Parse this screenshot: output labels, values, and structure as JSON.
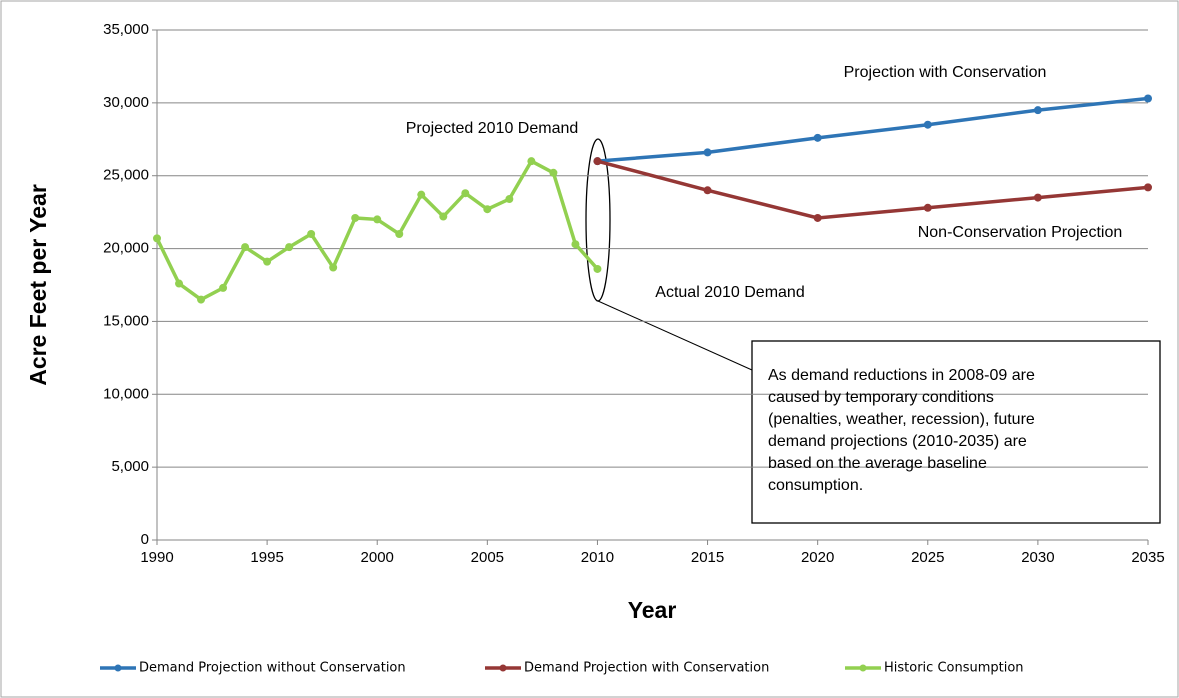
{
  "chart_data": {
    "type": "line",
    "xlabel": "Year",
    "ylabel": "Acre Feet per Year",
    "xlim": [
      1990,
      2035
    ],
    "xticks": [
      1990,
      1995,
      2000,
      2005,
      2010,
      2015,
      2020,
      2025,
      2030,
      2035
    ],
    "ylim": [
      0,
      35000
    ],
    "yticks": [
      0,
      {
        "value": 5000,
        "label": "5,000"
      },
      {
        "value": 10000,
        "label": "10,000"
      },
      {
        "value": 15000,
        "label": "15,000"
      },
      {
        "value": 20000,
        "label": "20,000"
      },
      {
        "value": 25000,
        "label": "25,000"
      },
      {
        "value": 30000,
        "label": "30,000"
      },
      {
        "value": 35000,
        "label": "35,000"
      }
    ],
    "grid": true,
    "legend": "bottom",
    "series": [
      {
        "name": "Demand Projection without Conservation",
        "color": "#2e75b6",
        "x": [
          2010,
          2015,
          2020,
          2025,
          2030,
          2035
        ],
        "values": [
          26000,
          26600,
          27600,
          28500,
          29500,
          30300
        ]
      },
      {
        "name": "Demand Projection with Conservation",
        "color": "#953735",
        "x": [
          2010,
          2015,
          2020,
          2025,
          2030,
          2035
        ],
        "values": [
          26000,
          24000,
          22100,
          22800,
          23500,
          24200
        ]
      },
      {
        "name": "Historic Consumption",
        "color": "#92d050",
        "x": [
          1990,
          1991,
          1992,
          1993,
          1994,
          1995,
          1996,
          1997,
          1998,
          1999,
          2000,
          2001,
          2002,
          2003,
          2004,
          2005,
          2006,
          2007,
          2008,
          2009,
          2010
        ],
        "values": [
          20700,
          17600,
          16500,
          17300,
          20100,
          19100,
          20100,
          21000,
          18700,
          22100,
          22000,
          21000,
          23700,
          22200,
          23800,
          22700,
          23400,
          26000,
          25200,
          20300,
          18600
        ]
      }
    ],
    "annotations": [
      "Projection with Conservation",
      "Projected 2010 Demand",
      "Non-Conservation Projection",
      "Actual 2010 Demand"
    ],
    "note": [
      "As demand reductions in 2008-09 are",
      "caused by temporary conditions",
      "(penalties, weather, recession), future",
      "demand projections (2010-2035) are",
      "based on the average baseline",
      "consumption."
    ]
  }
}
